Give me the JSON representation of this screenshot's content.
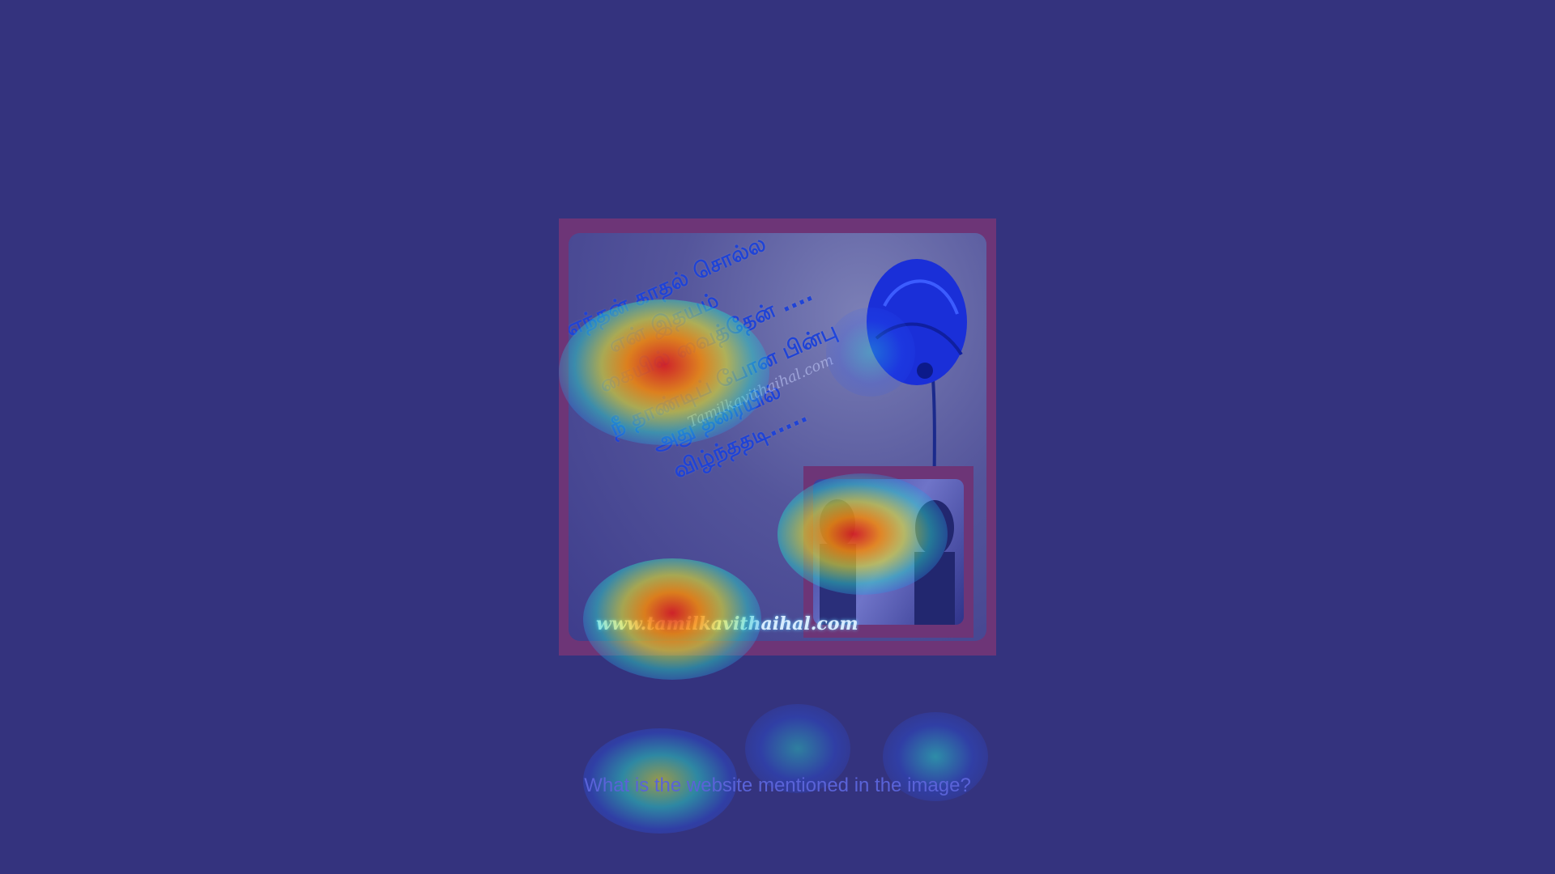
{
  "poster": {
    "poem_lines": [
      "எந்தன் காதல் சொல்ல",
      "என் இதயம்",
      "கையில் வைத்தேன் ....",
      "நீ தாண்டிப் போன பின்பு",
      "அது தரையில்",
      "விழ்ந்ததடி....."
    ],
    "watermark": "Tamilkavithaihal.com",
    "website": "www.tamilkavithaihal.com"
  },
  "question": "What is the website mentioned in the image?",
  "colors": {
    "background": "#34337e",
    "frame": "#6d3577",
    "poem_text": "#1f43d6"
  }
}
